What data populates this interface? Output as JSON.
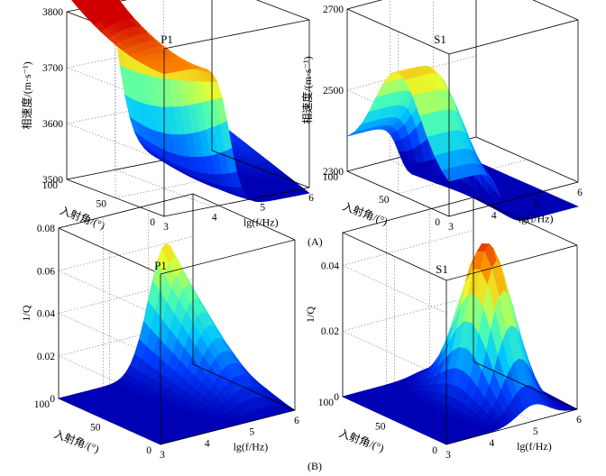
{
  "figure": {
    "row_labels": [
      "(A)",
      "(B)"
    ]
  },
  "colors": {
    "colormap": [
      "#0000b4",
      "#0040ff",
      "#00c8ff",
      "#50ffb0",
      "#e8ff30",
      "#ff9000",
      "#d00000"
    ]
  },
  "chart_data": [
    {
      "type": "surface3d",
      "title": "P1",
      "xlabel": "lg(f/Hz)",
      "ylabel": "入射角/(°)",
      "zlabel": "相速度/(m·s⁻¹)",
      "xlim": [
        3,
        6
      ],
      "ylim": [
        0,
        100
      ],
      "zlim": [
        3500,
        3800
      ],
      "xticks": [
        "3",
        "4",
        "5",
        "6"
      ],
      "yticks": [
        "0",
        "50",
        "100"
      ],
      "zticks": [
        "3500",
        "3600",
        "3700",
        "3800"
      ],
      "grid": true,
      "model": {
        "kind": "velocity",
        "high": 3755,
        "low": 3490,
        "center": 4.35,
        "width": 0.13,
        "angle_effect": "edge-rises-with-angle"
      }
    },
    {
      "type": "surface3d",
      "title": "S1",
      "xlabel": "lg(f/Hz)",
      "ylabel": "入射角/(°)",
      "zlabel": "相速度/(m·s⁻¹)",
      "xlim": [
        3,
        6
      ],
      "ylim": [
        0,
        100
      ],
      "zlim": [
        2300,
        2700
      ],
      "xticks": [
        "3",
        "4",
        "5",
        "6"
      ],
      "yticks": [
        "0",
        "50",
        "100"
      ],
      "zticks": [
        "2300",
        "2500",
        "2700"
      ],
      "grid": true,
      "model": {
        "kind": "velocity",
        "high": 2600,
        "low": 2240,
        "center": 4.2,
        "width": 0.12,
        "angle_effect": "bell-in-angle"
      }
    },
    {
      "type": "surface3d",
      "title": "P1",
      "xlabel": "lg(f/Hz)",
      "ylabel": "入射角/(°)",
      "zlabel": "1/Q",
      "xlim": [
        3,
        6
      ],
      "ylim": [
        0,
        100
      ],
      "zlim": [
        0,
        0.08
      ],
      "xticks": [
        "3",
        "4",
        "5",
        "6"
      ],
      "yticks": [
        "0",
        "50",
        "100"
      ],
      "zticks": [
        "0",
        "0.02",
        "0.04",
        "0.06",
        "0.08"
      ],
      "grid": true,
      "model": {
        "kind": "attenuation",
        "peak": 0.06,
        "center": 5.4,
        "width": 0.55,
        "angle_effect": "increases-with-angle"
      }
    },
    {
      "type": "surface3d",
      "title": "S1",
      "xlabel": "lg(f/Hz)",
      "ylabel": "入射角/(°)",
      "zlabel": "1/Q",
      "xlim": [
        3,
        6
      ],
      "ylim": [
        0,
        100
      ],
      "zlim": [
        0,
        0.05
      ],
      "xticks": [
        "3",
        "4",
        "5",
        "6"
      ],
      "yticks": [
        "0",
        "50",
        "100"
      ],
      "zticks": [
        "0",
        "0.02",
        "0.04"
      ],
      "grid": true,
      "model": {
        "kind": "attenuation",
        "peak": 0.048,
        "center": 5.0,
        "width": 0.5,
        "angle_effect": "bell-in-angle"
      }
    }
  ]
}
